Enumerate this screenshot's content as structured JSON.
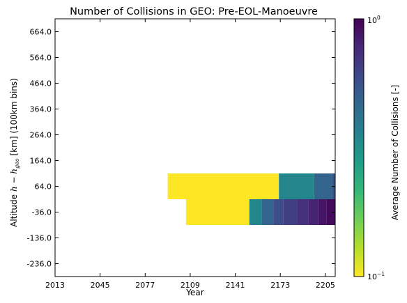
{
  "chart_data": {
    "type": "heatmap",
    "title": "Number of Collisions in GEO: Pre-EOL-Manoeuvre",
    "xlabel": "Year",
    "ylabel": "Altitude h − h_geo [km] (100km bins)",
    "ylabel_parts": {
      "prefix": "Altitude ",
      "math_h": "h",
      "minus": " − ",
      "math_hgeo": "h",
      "math_sub": "geo",
      "suffix": " [km] (100km bins)"
    },
    "x_ticks": [
      "2013",
      "2045",
      "2077",
      "2109",
      "2141",
      "2173",
      "2205"
    ],
    "x_tick_values": [
      2013,
      2045,
      2077,
      2109,
      2141,
      2173,
      2205
    ],
    "xlim": [
      2013,
      2212
    ],
    "y_ticks": [
      "664.0",
      "564.0",
      "464.0",
      "364.0",
      "264.0",
      "164.0",
      "64.0",
      "-36.0",
      "-136.0",
      "-236.0"
    ],
    "y_tick_values": [
      664,
      564,
      464,
      364,
      264,
      164,
      64,
      -36,
      -136,
      -236
    ],
    "ylim": [
      -286,
      714
    ],
    "bin_height_km": 100,
    "cells": [
      {
        "alt": 64,
        "x0": 2093,
        "x1": 2172,
        "value": 0.1
      },
      {
        "alt": 64,
        "x0": 2172,
        "x1": 2197,
        "value": 0.35
      },
      {
        "alt": 64,
        "x0": 2197,
        "x1": 2210,
        "value": 0.48
      },
      {
        "alt": 64,
        "x0": 2210,
        "x1": 2212,
        "value": 0.55
      },
      {
        "alt": -36,
        "x0": 2106,
        "x1": 2151,
        "value": 0.1
      },
      {
        "alt": -36,
        "x0": 2151,
        "x1": 2160,
        "value": 0.35
      },
      {
        "alt": -36,
        "x0": 2160,
        "x1": 2168,
        "value": 0.48
      },
      {
        "alt": -36,
        "x0": 2168,
        "x1": 2175,
        "value": 0.58
      },
      {
        "alt": -36,
        "x0": 2175,
        "x1": 2185,
        "value": 0.65
      },
      {
        "alt": -36,
        "x0": 2185,
        "x1": 2193,
        "value": 0.72
      },
      {
        "alt": -36,
        "x0": 2193,
        "x1": 2200,
        "value": 0.8
      },
      {
        "alt": -36,
        "x0": 2200,
        "x1": 2206,
        "value": 0.88
      },
      {
        "alt": -36,
        "x0": 2206,
        "x1": 2212,
        "value": 0.95
      }
    ],
    "colorbar": {
      "label": "Average Number of Collisions [-]",
      "scale": "log",
      "min": 0.1,
      "max": 1,
      "min_label_base": "10",
      "min_label_exp": "−1",
      "max_label_base": "10",
      "max_label_exp": "0",
      "colormap": "viridis (reversed: yellow = low, dark purple = high)"
    },
    "grid": false
  }
}
